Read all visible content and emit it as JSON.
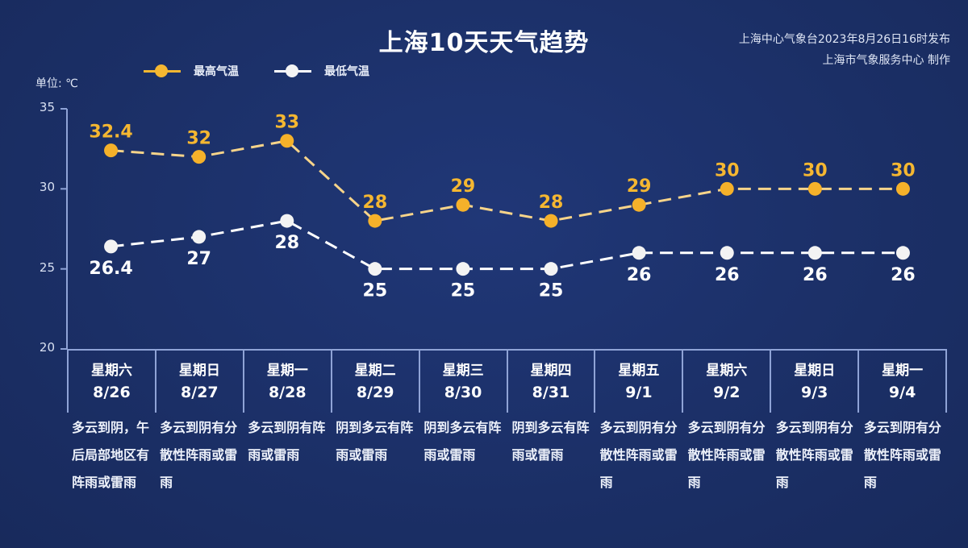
{
  "header": {
    "title": "上海10天天气趋势",
    "credit_line1": "上海中心气象台2023年8月26日16时发布",
    "credit_line2": "上海市气象服务中心 制作"
  },
  "unit_label": "单位: ℃",
  "legend": {
    "high_label": "最高气温",
    "low_label": "最低气温"
  },
  "colors": {
    "background": "#1b2f66",
    "high": "#f5b731",
    "low": "#ffffff",
    "grid": "#8fa3d6"
  },
  "chart_data": {
    "type": "line",
    "title": "上海10天天气趋势",
    "xlabel": "",
    "ylabel": "单位: ℃",
    "ylim": [
      20,
      35
    ],
    "yticks": [
      20,
      25,
      30,
      35
    ],
    "legend_position": "top",
    "grid": false,
    "categories": [
      "8/26",
      "8/27",
      "8/28",
      "8/29",
      "8/30",
      "8/31",
      "9/1",
      "9/2",
      "9/3",
      "9/4"
    ],
    "weekdays": [
      "星期六",
      "星期日",
      "星期一",
      "星期二",
      "星期三",
      "星期四",
      "星期五",
      "星期六",
      "星期日",
      "星期一"
    ],
    "series": [
      {
        "name": "最高气温",
        "color": "#f5b731",
        "values": [
          32.4,
          32,
          33,
          28,
          29,
          28,
          29,
          30,
          30,
          30
        ]
      },
      {
        "name": "最低气温",
        "color": "#ffffff",
        "values": [
          26.4,
          27,
          28,
          25,
          25,
          25,
          26,
          26,
          26,
          26
        ]
      }
    ]
  },
  "days": [
    {
      "weekday": "星期六",
      "date": "8/26",
      "desc": "多云到阴，午后局部地区有阵雨或雷雨",
      "high": "32.4",
      "low": "26.4"
    },
    {
      "weekday": "星期日",
      "date": "8/27",
      "desc": "多云到阴有分散性阵雨或雷雨",
      "high": "32",
      "low": "27"
    },
    {
      "weekday": "星期一",
      "date": "8/28",
      "desc": "多云到阴有阵雨或雷雨",
      "high": "33",
      "low": "28"
    },
    {
      "weekday": "星期二",
      "date": "8/29",
      "desc": "阴到多云有阵雨或雷雨",
      "high": "28",
      "low": "25"
    },
    {
      "weekday": "星期三",
      "date": "8/30",
      "desc": "阴到多云有阵雨或雷雨",
      "high": "29",
      "low": "25"
    },
    {
      "weekday": "星期四",
      "date": "8/31",
      "desc": "阴到多云有阵雨或雷雨",
      "high": "28",
      "low": "25"
    },
    {
      "weekday": "星期五",
      "date": "9/1",
      "desc": "多云到阴有分散性阵雨或雷雨",
      "high": "29",
      "low": "26"
    },
    {
      "weekday": "星期六",
      "date": "9/2",
      "desc": "多云到阴有分散性阵雨或雷雨",
      "high": "30",
      "low": "26"
    },
    {
      "weekday": "星期日",
      "date": "9/3",
      "desc": "多云到阴有分散性阵雨或雷雨",
      "high": "30",
      "low": "26"
    },
    {
      "weekday": "星期一",
      "date": "9/4",
      "desc": "多云到阴有分散性阵雨或雷雨",
      "high": "30",
      "low": "26"
    }
  ]
}
